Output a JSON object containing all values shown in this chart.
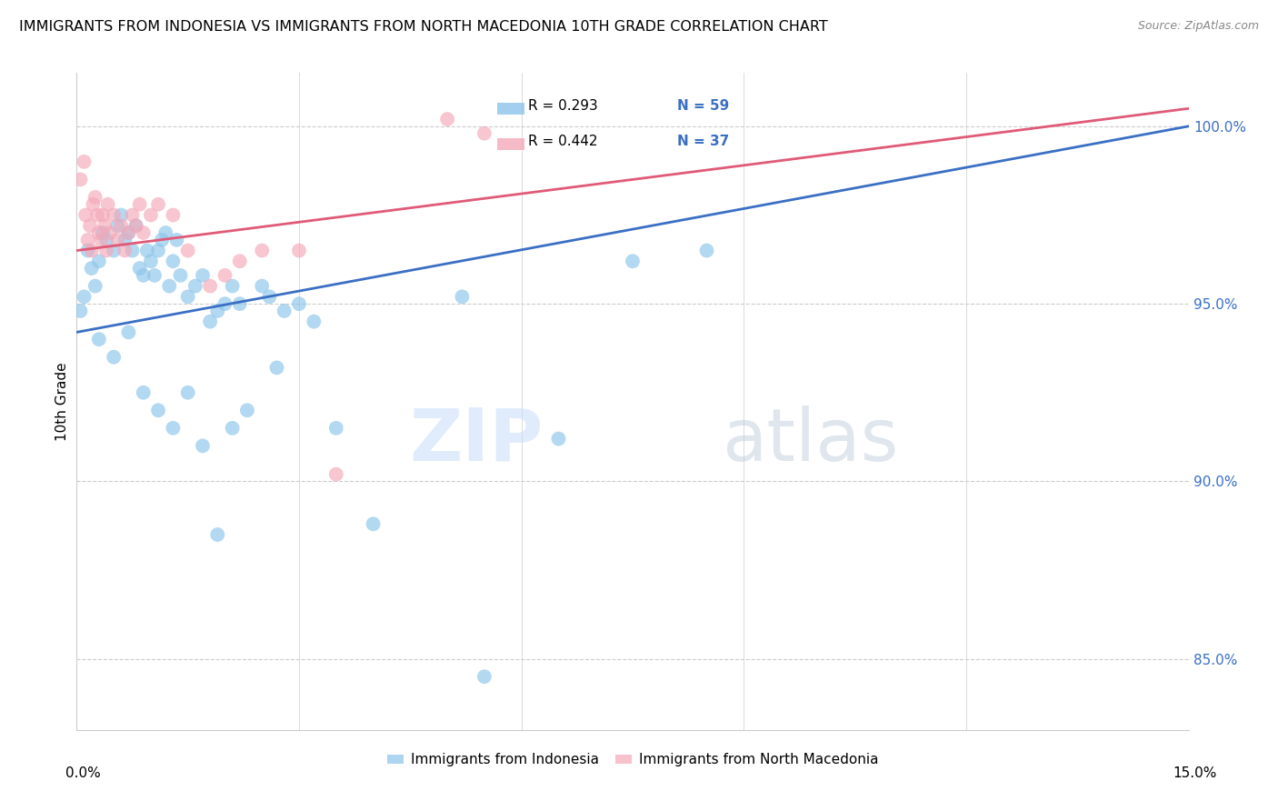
{
  "title": "IMMIGRANTS FROM INDONESIA VS IMMIGRANTS FROM NORTH MACEDONIA 10TH GRADE CORRELATION CHART",
  "source": "Source: ZipAtlas.com",
  "ylabel": "10th Grade",
  "xlim": [
    0.0,
    15.0
  ],
  "ylim": [
    83.0,
    101.5
  ],
  "yticks": [
    85.0,
    90.0,
    95.0,
    100.0
  ],
  "ytick_labels": [
    "85.0%",
    "90.0%",
    "95.0%",
    "100.0%"
  ],
  "xtick_labels": [
    "0.0%",
    "15.0%"
  ],
  "legend_r1": "0.293",
  "legend_n1": "59",
  "legend_r2": "0.442",
  "legend_n2": "37",
  "color_indonesia": "#8BC4EA",
  "color_north_macedonia": "#F4A8B8",
  "color_line_indonesia": "#3A6FC4",
  "color_line_north_macedonia": "#E05A78",
  "legend_label1": "Immigrants from Indonesia",
  "legend_label2": "Immigrants from North Macedonia",
  "watermark_zip": "ZIP",
  "watermark_atlas": "atlas",
  "indonesia_x": [
    0.05,
    0.1,
    0.15,
    0.2,
    0.25,
    0.3,
    0.35,
    0.4,
    0.5,
    0.55,
    0.6,
    0.65,
    0.7,
    0.75,
    0.8,
    0.85,
    0.9,
    0.95,
    1.0,
    1.05,
    1.1,
    1.15,
    1.2,
    1.25,
    1.3,
    1.35,
    1.4,
    1.5,
    1.6,
    1.7,
    1.8,
    1.9,
    2.0,
    2.1,
    2.2,
    2.5,
    2.6,
    2.8,
    3.0,
    3.2,
    4.0,
    5.2,
    5.5,
    6.5,
    7.5,
    8.5,
    0.3,
    0.5,
    0.7,
    0.9,
    1.1,
    1.3,
    1.5,
    1.7,
    1.9,
    2.1,
    2.3,
    2.7,
    3.5
  ],
  "indonesia_y": [
    94.8,
    95.2,
    96.5,
    96.0,
    95.5,
    96.2,
    97.0,
    96.8,
    96.5,
    97.2,
    97.5,
    96.8,
    97.0,
    96.5,
    97.2,
    96.0,
    95.8,
    96.5,
    96.2,
    95.8,
    96.5,
    96.8,
    97.0,
    95.5,
    96.2,
    96.8,
    95.8,
    95.2,
    95.5,
    95.8,
    94.5,
    94.8,
    95.0,
    95.5,
    95.0,
    95.5,
    95.2,
    94.8,
    95.0,
    94.5,
    88.8,
    95.2,
    84.5,
    91.2,
    96.2,
    96.5,
    94.0,
    93.5,
    94.2,
    92.5,
    92.0,
    91.5,
    92.5,
    91.0,
    88.5,
    91.5,
    92.0,
    93.2,
    91.5
  ],
  "north_macedonia_x": [
    0.05,
    0.1,
    0.12,
    0.15,
    0.18,
    0.2,
    0.22,
    0.25,
    0.28,
    0.3,
    0.33,
    0.35,
    0.38,
    0.4,
    0.42,
    0.45,
    0.5,
    0.55,
    0.6,
    0.65,
    0.7,
    0.75,
    0.8,
    0.85,
    0.9,
    1.0,
    1.1,
    1.3,
    1.5,
    1.8,
    2.0,
    2.2,
    2.5,
    3.0,
    3.5,
    5.0,
    5.5
  ],
  "north_macedonia_y": [
    98.5,
    99.0,
    97.5,
    96.8,
    97.2,
    96.5,
    97.8,
    98.0,
    97.5,
    97.0,
    96.8,
    97.5,
    97.2,
    96.5,
    97.8,
    97.0,
    97.5,
    96.8,
    97.2,
    96.5,
    97.0,
    97.5,
    97.2,
    97.8,
    97.0,
    97.5,
    97.8,
    97.5,
    96.5,
    95.5,
    95.8,
    96.2,
    96.5,
    96.5,
    90.2,
    100.2,
    99.8
  ]
}
